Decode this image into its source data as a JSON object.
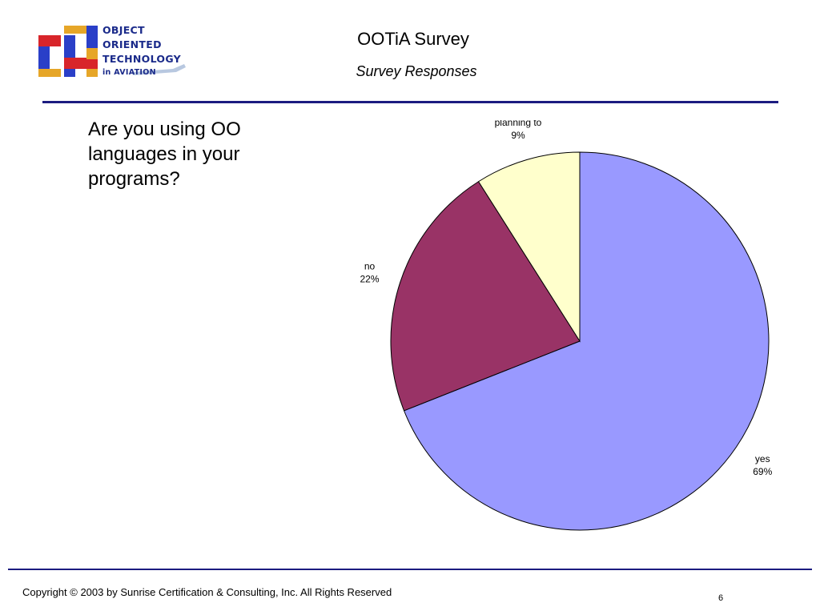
{
  "logo": {
    "line1": "OBJECT",
    "line2": "ORIENTED",
    "line3": "TECHNOLOGY",
    "line4": "in AVIATION"
  },
  "slide": {
    "title": "OOTiA Survey",
    "subtitle": "Survey Responses",
    "question": "Are you using OO languages in your programs?",
    "footer": "Copyright © 2003 by Sunrise Certification & Consulting, Inc.  All Rights Reserved",
    "page_number": "6"
  },
  "chart_data": {
    "type": "pie",
    "slices": [
      {
        "label": "yes",
        "value": 69,
        "display": "69%",
        "color": "#9999ff"
      },
      {
        "label": "no",
        "value": 22,
        "display": "22%",
        "color": "#993366"
      },
      {
        "label": "planning to",
        "value": 9,
        "display": "9%",
        "color": "#ffffcc"
      }
    ]
  }
}
